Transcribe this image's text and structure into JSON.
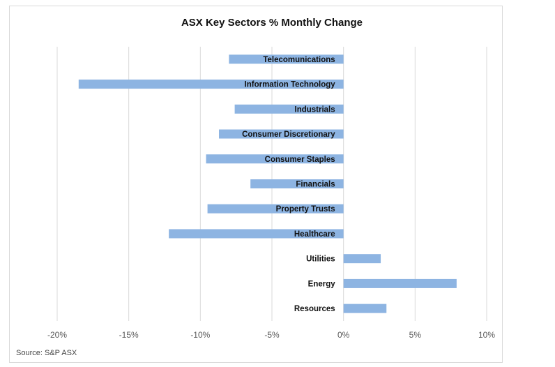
{
  "chart_data": {
    "type": "bar",
    "orientation": "horizontal",
    "title": "ASX Key Sectors % Monthly Change",
    "categories": [
      "Telecomunications",
      "Information Technology",
      "Industrials",
      "Consumer Discretionary",
      "Consumer Staples",
      "Financials",
      "Property Trusts",
      "Healthcare",
      "Utilities",
      "Energy",
      "Resources"
    ],
    "values": [
      -8.0,
      -18.5,
      -7.6,
      -8.7,
      -9.6,
      -6.5,
      -9.5,
      -12.2,
      2.6,
      7.9,
      3.0
    ],
    "xlim": [
      -20,
      10
    ],
    "xticks": [
      "-20%",
      "-15%",
      "-10%",
      "-5%",
      "0%",
      "5%",
      "10%"
    ],
    "xtick_values": [
      -20,
      -15,
      -10,
      -5,
      0,
      5,
      10
    ],
    "grid": "vertical",
    "bar_color": "#8db4e2",
    "source": "Source: S&P ASX"
  }
}
